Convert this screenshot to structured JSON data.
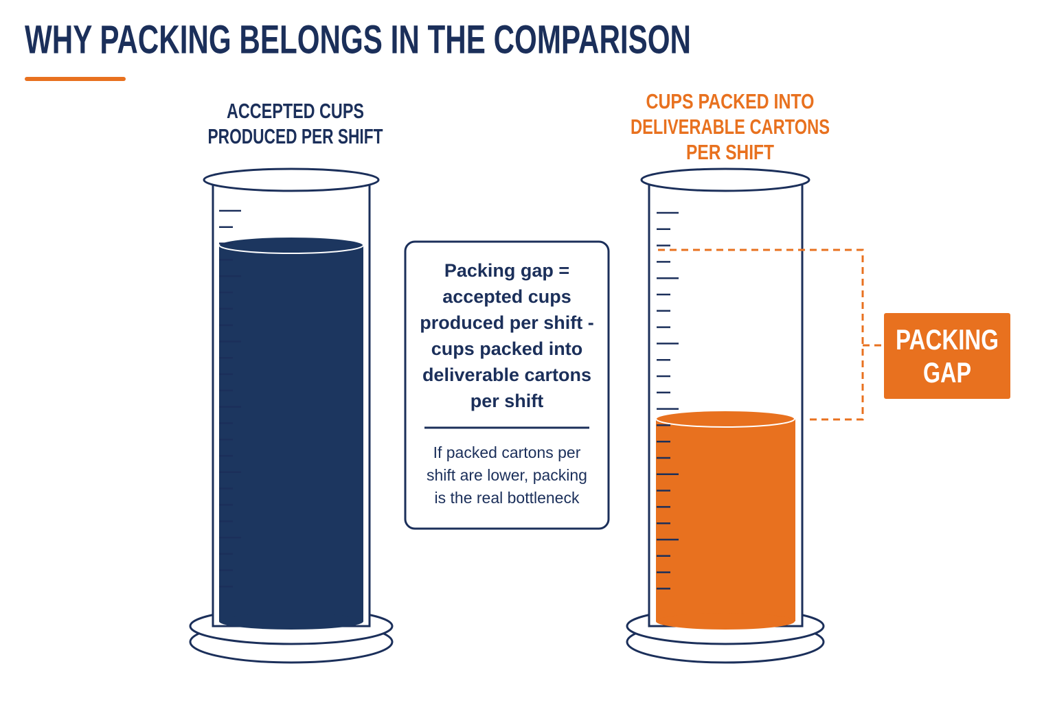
{
  "title": "WHY PACKING BELONGS IN THE COMPARISON",
  "left_cylinder": {
    "label": [
      "ACCEPTED CUPS",
      "PRODUCED PER SHIFT"
    ]
  },
  "right_cylinder": {
    "label": [
      "CUPS PACKED INTO",
      "DELIVERABLE CARTONS",
      "PER SHIFT"
    ]
  },
  "formula_box": {
    "lines": [
      "Packing gap =",
      "accepted cups",
      "produced per shift -",
      "cups packed into",
      "deliverable cartons",
      "per shift"
    ],
    "note": [
      "If packed cartons per",
      "shift are lower, packing",
      "is the real bottleneck"
    ]
  },
  "gap_label": [
    "PACKING",
    "GAP"
  ]
}
